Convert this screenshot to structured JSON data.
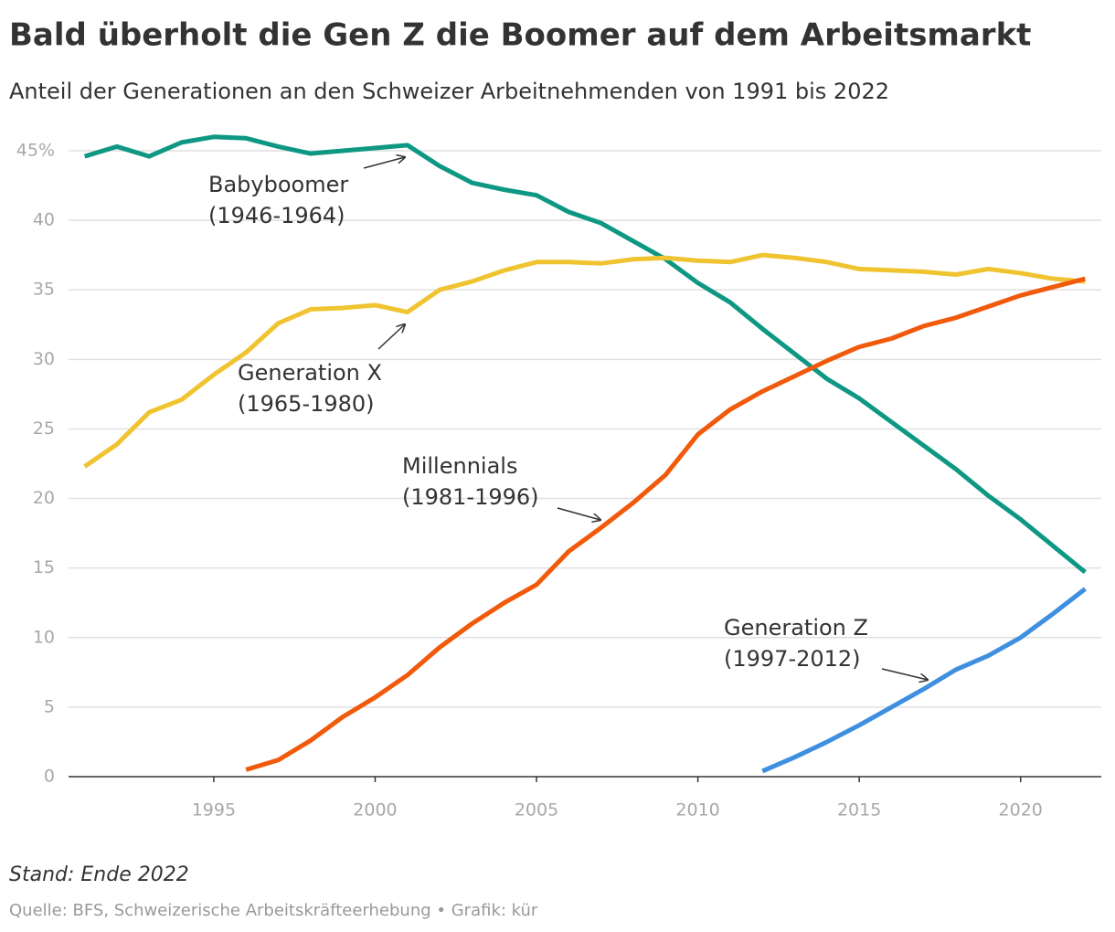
{
  "chart_data": {
    "type": "line",
    "title": "Bald überholt die Gen Z die Boomer auf dem Arbeitsmarkt",
    "subtitle": "Anteil der Generationen an den Schweizer Arbeitnehmenden von 1991 bis 2022",
    "x": [
      1991,
      1992,
      1993,
      1994,
      1995,
      1996,
      1997,
      1998,
      1999,
      2000,
      2001,
      2002,
      2003,
      2004,
      2005,
      2006,
      2007,
      2008,
      2009,
      2010,
      2011,
      2012,
      2013,
      2014,
      2015,
      2016,
      2017,
      2018,
      2019,
      2020,
      2021,
      2022
    ],
    "series": [
      {
        "name": "Babyboomer",
        "period": "(1946-1964)",
        "color": "#0e9884",
        "values": [
          44.6,
          45.3,
          44.6,
          45.6,
          46.0,
          45.9,
          45.3,
          44.8,
          45.0,
          45.2,
          45.4,
          43.9,
          42.7,
          42.2,
          41.8,
          40.6,
          39.8,
          38.5,
          37.2,
          35.5,
          34.1,
          32.2,
          30.4,
          28.6,
          27.2,
          25.5,
          23.8,
          22.1,
          20.2,
          18.5,
          16.6,
          14.7
        ]
      },
      {
        "name": "Generation X",
        "period": "(1965-1980)",
        "color": "#f0c431",
        "values": [
          22.3,
          23.9,
          26.2,
          27.1,
          28.9,
          30.5,
          32.6,
          33.6,
          33.7,
          33.9,
          33.4,
          35.0,
          35.6,
          36.4,
          37.0,
          37.0,
          36.9,
          37.2,
          37.3,
          37.1,
          37.0,
          37.5,
          37.3,
          37.0,
          36.5,
          36.4,
          36.3,
          36.1,
          36.5,
          36.2,
          35.8,
          35.6
        ]
      },
      {
        "name": "Millennials",
        "period": "(1981-1996)",
        "color": "#f05a0a",
        "values": [
          null,
          null,
          null,
          null,
          null,
          0.5,
          1.2,
          2.6,
          4.3,
          5.7,
          7.3,
          9.3,
          11.0,
          12.5,
          13.8,
          16.2,
          17.9,
          19.7,
          21.7,
          24.6,
          26.4,
          27.7,
          28.8,
          29.9,
          30.9,
          31.5,
          32.4,
          33.0,
          33.8,
          34.6,
          35.2,
          35.8
        ]
      },
      {
        "name": "Generation Z",
        "period": "(1997-2012)",
        "color": "#3f8fe0",
        "values": [
          null,
          null,
          null,
          null,
          null,
          null,
          null,
          null,
          null,
          null,
          null,
          null,
          null,
          null,
          null,
          null,
          null,
          null,
          null,
          null,
          null,
          0.4,
          1.4,
          2.5,
          3.7,
          5.0,
          6.3,
          7.7,
          8.7,
          10.0,
          11.7,
          13.5
        ]
      }
    ],
    "xlim": [
      1990.5,
      2022.5
    ],
    "xticks": [
      1995,
      2000,
      2005,
      2010,
      2015,
      2020
    ],
    "ylim": [
      0,
      45
    ],
    "yticks": [
      0,
      5,
      10,
      15,
      20,
      25,
      30,
      35,
      40,
      {
        "value": 45,
        "label": "45%"
      }
    ],
    "grid": true,
    "note": "Stand: Ende 2022",
    "source": "Quelle: BFS, Schweizerische Arbeitskräfteerhebung • Grafik: kür"
  }
}
